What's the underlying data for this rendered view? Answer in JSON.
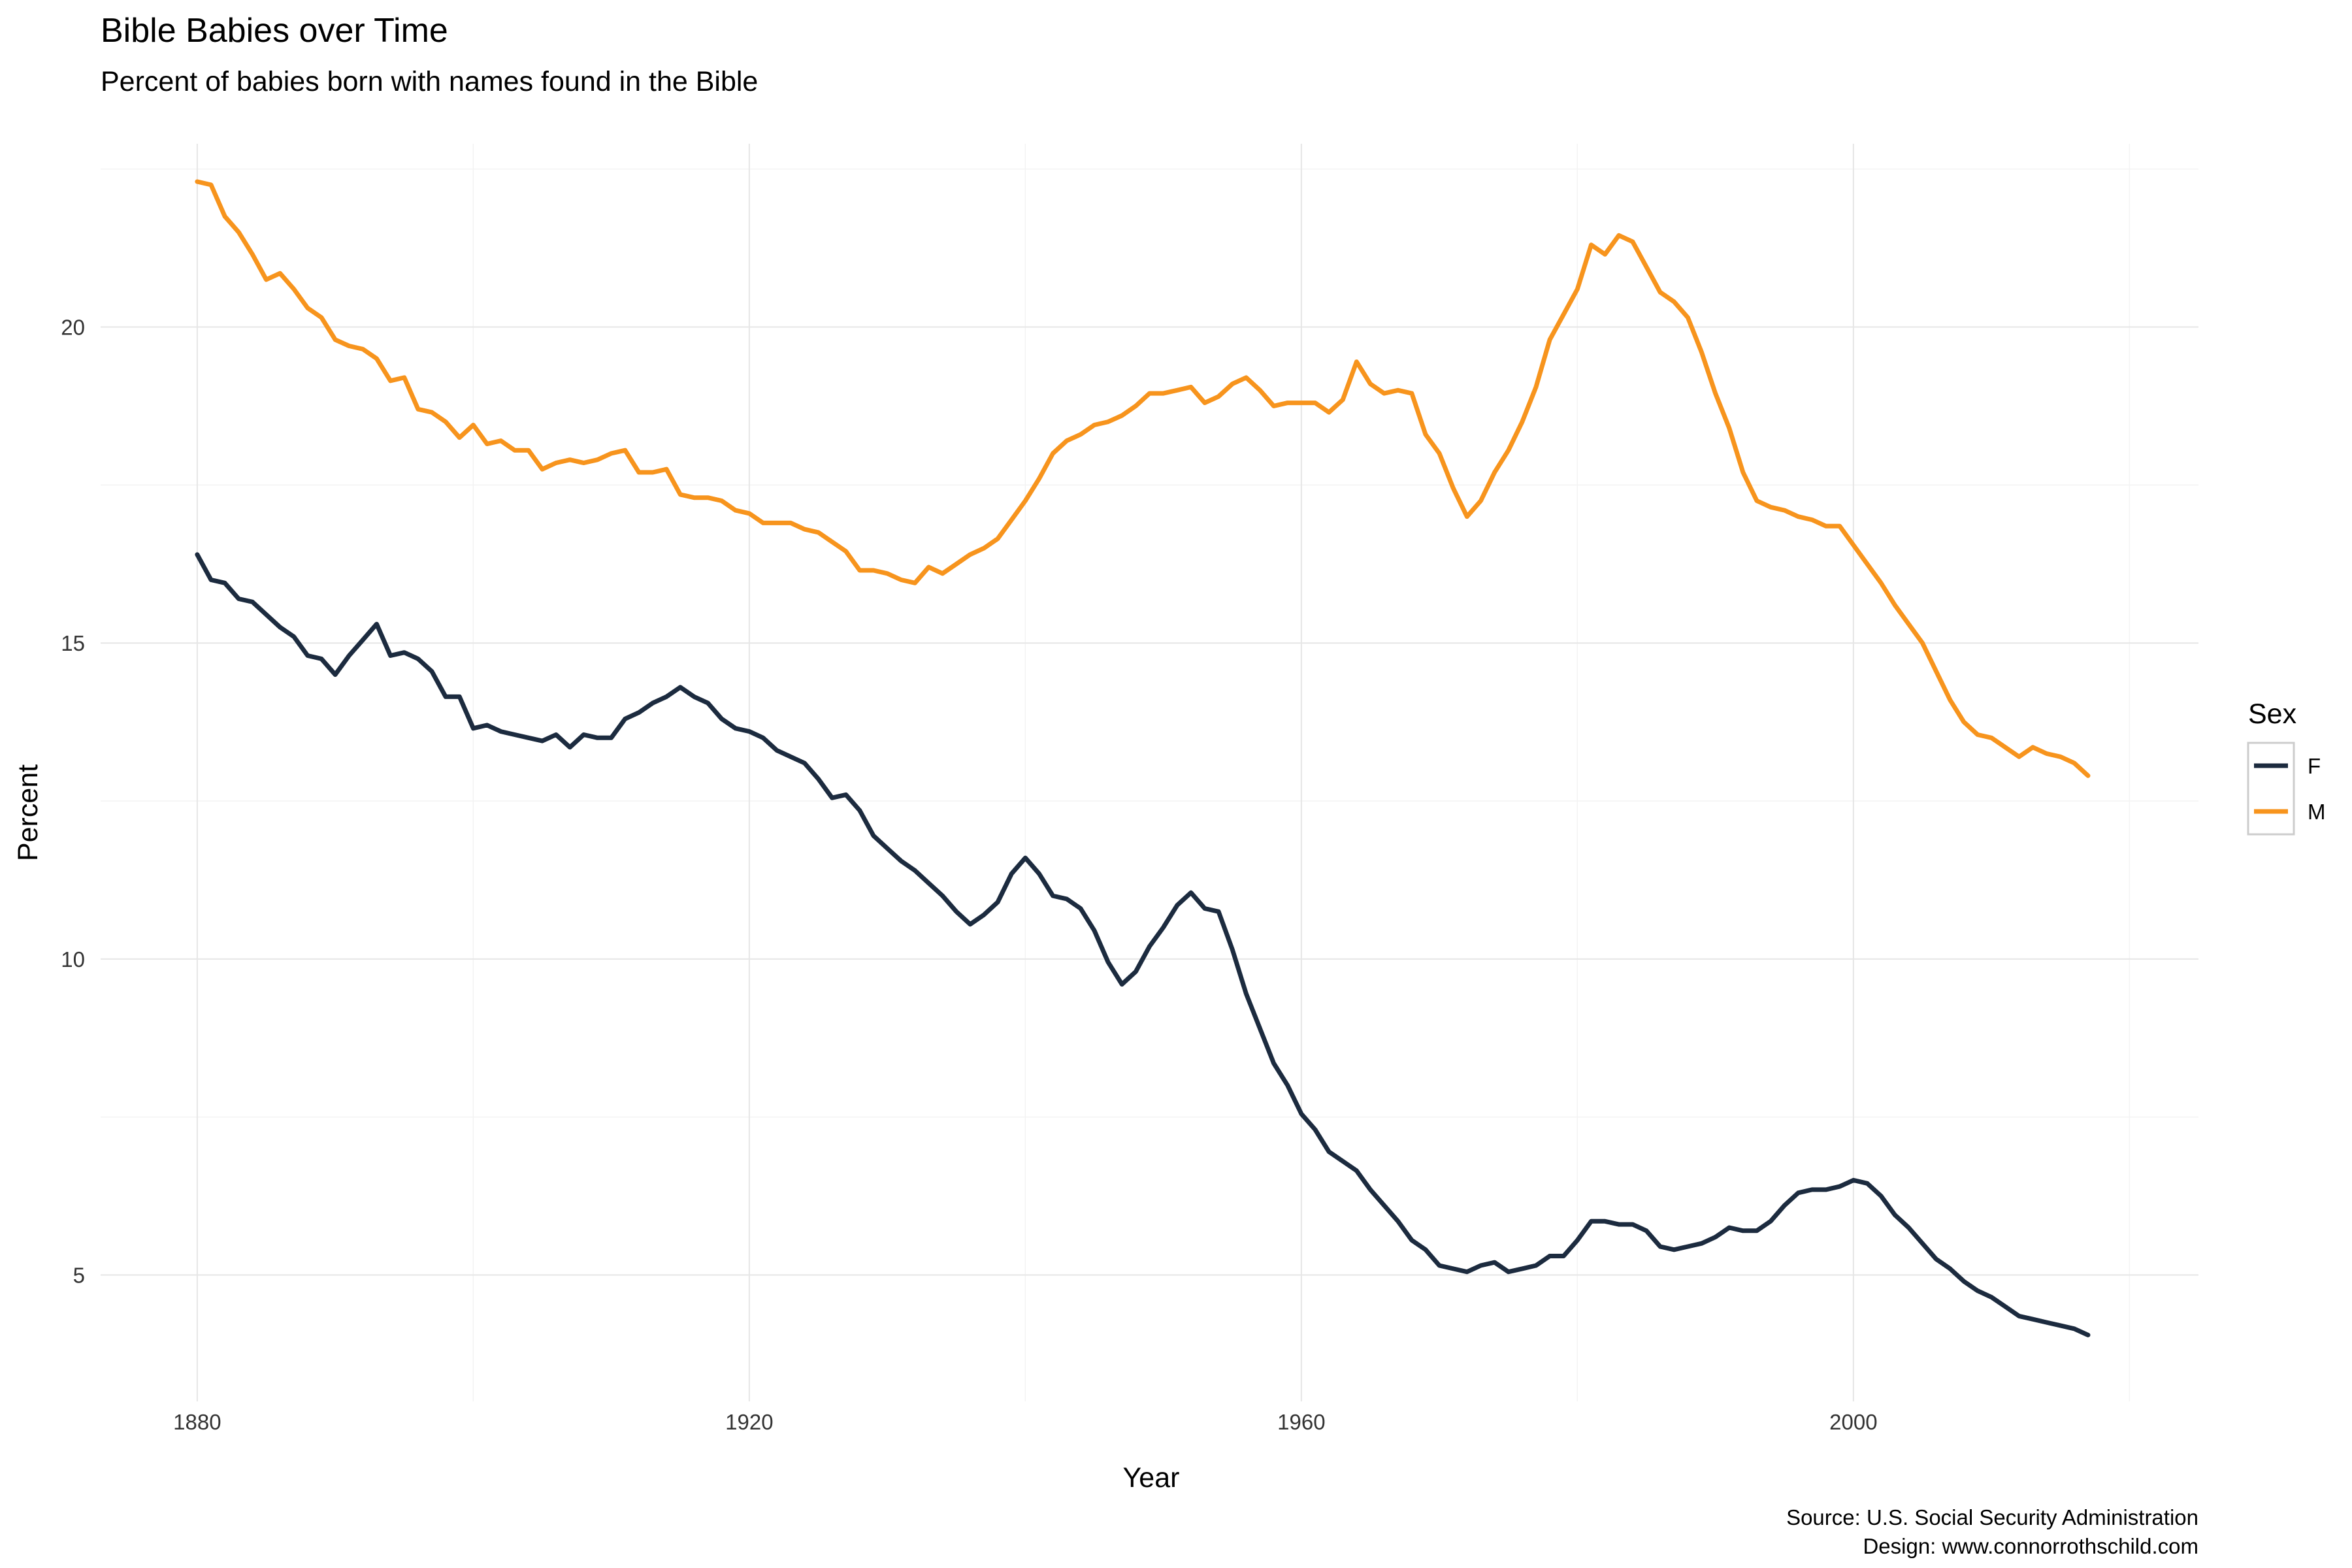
{
  "chart_data": {
    "type": "line",
    "title": "Bible Babies over Time",
    "subtitle": "Percent of babies born with names found in the Bible",
    "xlabel": "Year",
    "ylabel": "Percent",
    "xlim": [
      1873,
      2025
    ],
    "ylim": [
      3.0,
      22.9
    ],
    "x_ticks": [
      1880,
      1920,
      1960,
      2000
    ],
    "y_ticks": [
      5,
      10,
      15,
      20
    ],
    "grid": true,
    "legend": {
      "title": "Sex",
      "placement": "right"
    },
    "caption": [
      "Source: U.S. Social Security Administration",
      "Design: www.connorrothschild.com"
    ],
    "series": [
      {
        "name": "F",
        "color": "#1c2b3f",
        "points": [
          [
            1880,
            16.4
          ],
          [
            1881,
            16.0
          ],
          [
            1882,
            15.95
          ],
          [
            1883,
            15.7
          ],
          [
            1884,
            15.65
          ],
          [
            1885,
            15.45
          ],
          [
            1886,
            15.25
          ],
          [
            1887,
            15.1
          ],
          [
            1888,
            14.8
          ],
          [
            1889,
            14.75
          ],
          [
            1890,
            14.5
          ],
          [
            1891,
            14.8
          ],
          [
            1892,
            15.05
          ],
          [
            1893,
            15.3
          ],
          [
            1894,
            14.8
          ],
          [
            1895,
            14.85
          ],
          [
            1896,
            14.75
          ],
          [
            1897,
            14.55
          ],
          [
            1898,
            14.15
          ],
          [
            1899,
            14.15
          ],
          [
            1900,
            13.65
          ],
          [
            1901,
            13.7
          ],
          [
            1902,
            13.6
          ],
          [
            1903,
            13.55
          ],
          [
            1904,
            13.5
          ],
          [
            1905,
            13.45
          ],
          [
            1906,
            13.55
          ],
          [
            1907,
            13.35
          ],
          [
            1908,
            13.55
          ],
          [
            1909,
            13.5
          ],
          [
            1910,
            13.5
          ],
          [
            1911,
            13.8
          ],
          [
            1912,
            13.9
          ],
          [
            1913,
            14.05
          ],
          [
            1914,
            14.15
          ],
          [
            1915,
            14.3
          ],
          [
            1916,
            14.15
          ],
          [
            1917,
            14.05
          ],
          [
            1918,
            13.8
          ],
          [
            1919,
            13.65
          ],
          [
            1920,
            13.6
          ],
          [
            1921,
            13.5
          ],
          [
            1922,
            13.3
          ],
          [
            1923,
            13.2
          ],
          [
            1924,
            13.1
          ],
          [
            1925,
            12.85
          ],
          [
            1926,
            12.55
          ],
          [
            1927,
            12.6
          ],
          [
            1928,
            12.35
          ],
          [
            1929,
            11.95
          ],
          [
            1930,
            11.75
          ],
          [
            1931,
            11.55
          ],
          [
            1932,
            11.4
          ],
          [
            1933,
            11.2
          ],
          [
            1934,
            11.0
          ],
          [
            1935,
            10.75
          ],
          [
            1936,
            10.55
          ],
          [
            1937,
            10.7
          ],
          [
            1938,
            10.9
          ],
          [
            1939,
            11.35
          ],
          [
            1940,
            11.6
          ],
          [
            1941,
            11.35
          ],
          [
            1942,
            11.0
          ],
          [
            1943,
            10.95
          ],
          [
            1944,
            10.8
          ],
          [
            1945,
            10.45
          ],
          [
            1946,
            9.95
          ],
          [
            1947,
            9.6
          ],
          [
            1948,
            9.8
          ],
          [
            1949,
            10.2
          ],
          [
            1950,
            10.5
          ],
          [
            1951,
            10.85
          ],
          [
            1952,
            11.05
          ],
          [
            1953,
            10.8
          ],
          [
            1954,
            10.75
          ],
          [
            1955,
            10.15
          ],
          [
            1956,
            9.45
          ],
          [
            1957,
            8.9
          ],
          [
            1958,
            8.35
          ],
          [
            1959,
            8.0
          ],
          [
            1960,
            7.55
          ],
          [
            1961,
            7.3
          ],
          [
            1962,
            6.95
          ],
          [
            1963,
            6.8
          ],
          [
            1964,
            6.65
          ],
          [
            1965,
            6.35
          ],
          [
            1966,
            6.1
          ],
          [
            1967,
            5.85
          ],
          [
            1968,
            5.55
          ],
          [
            1969,
            5.4
          ],
          [
            1970,
            5.15
          ],
          [
            1971,
            5.1
          ],
          [
            1972,
            5.05
          ],
          [
            1973,
            5.15
          ],
          [
            1974,
            5.2
          ],
          [
            1975,
            5.05
          ],
          [
            1976,
            5.1
          ],
          [
            1977,
            5.15
          ],
          [
            1978,
            5.3
          ],
          [
            1979,
            5.3
          ],
          [
            1980,
            5.55
          ],
          [
            1981,
            5.85
          ],
          [
            1982,
            5.85
          ],
          [
            1983,
            5.8
          ],
          [
            1984,
            5.8
          ],
          [
            1985,
            5.7
          ],
          [
            1986,
            5.45
          ],
          [
            1987,
            5.4
          ],
          [
            1988,
            5.45
          ],
          [
            1989,
            5.5
          ],
          [
            1990,
            5.6
          ],
          [
            1991,
            5.75
          ],
          [
            1992,
            5.7
          ],
          [
            1993,
            5.7
          ],
          [
            1994,
            5.85
          ],
          [
            1995,
            6.1
          ],
          [
            1996,
            6.3
          ],
          [
            1997,
            6.35
          ],
          [
            1998,
            6.35
          ],
          [
            1999,
            6.4
          ],
          [
            2000,
            6.5
          ],
          [
            2001,
            6.45
          ],
          [
            2002,
            6.25
          ],
          [
            2003,
            5.95
          ],
          [
            2004,
            5.75
          ],
          [
            2005,
            5.5
          ],
          [
            2006,
            5.25
          ],
          [
            2007,
            5.1
          ],
          [
            2008,
            4.9
          ],
          [
            2009,
            4.75
          ],
          [
            2010,
            4.65
          ],
          [
            2011,
            4.5
          ],
          [
            2012,
            4.35
          ],
          [
            2013,
            4.3
          ],
          [
            2014,
            4.25
          ],
          [
            2015,
            4.2
          ],
          [
            2016,
            4.15
          ],
          [
            2017,
            4.05
          ]
        ]
      },
      {
        "name": "M",
        "color": "#f7941d",
        "points": [
          [
            1880,
            22.3
          ],
          [
            1881,
            22.25
          ],
          [
            1882,
            21.75
          ],
          [
            1883,
            21.5
          ],
          [
            1884,
            21.15
          ],
          [
            1885,
            20.75
          ],
          [
            1886,
            20.85
          ],
          [
            1887,
            20.6
          ],
          [
            1888,
            20.3
          ],
          [
            1889,
            20.15
          ],
          [
            1890,
            19.8
          ],
          [
            1891,
            19.7
          ],
          [
            1892,
            19.65
          ],
          [
            1893,
            19.5
          ],
          [
            1894,
            19.15
          ],
          [
            1895,
            19.2
          ],
          [
            1896,
            18.7
          ],
          [
            1897,
            18.65
          ],
          [
            1898,
            18.5
          ],
          [
            1899,
            18.25
          ],
          [
            1900,
            18.45
          ],
          [
            1901,
            18.15
          ],
          [
            1902,
            18.2
          ],
          [
            1903,
            18.05
          ],
          [
            1904,
            18.05
          ],
          [
            1905,
            17.75
          ],
          [
            1906,
            17.85
          ],
          [
            1907,
            17.9
          ],
          [
            1908,
            17.85
          ],
          [
            1909,
            17.9
          ],
          [
            1910,
            18.0
          ],
          [
            1911,
            18.05
          ],
          [
            1912,
            17.7
          ],
          [
            1913,
            17.7
          ],
          [
            1914,
            17.75
          ],
          [
            1915,
            17.35
          ],
          [
            1916,
            17.3
          ],
          [
            1917,
            17.3
          ],
          [
            1918,
            17.25
          ],
          [
            1919,
            17.1
          ],
          [
            1920,
            17.05
          ],
          [
            1921,
            16.9
          ],
          [
            1922,
            16.9
          ],
          [
            1923,
            16.9
          ],
          [
            1924,
            16.8
          ],
          [
            1925,
            16.75
          ],
          [
            1926,
            16.6
          ],
          [
            1927,
            16.45
          ],
          [
            1928,
            16.15
          ],
          [
            1929,
            16.15
          ],
          [
            1930,
            16.1
          ],
          [
            1931,
            16.0
          ],
          [
            1932,
            15.95
          ],
          [
            1933,
            16.2
          ],
          [
            1934,
            16.1
          ],
          [
            1935,
            16.25
          ],
          [
            1936,
            16.4
          ],
          [
            1937,
            16.5
          ],
          [
            1938,
            16.65
          ],
          [
            1939,
            16.95
          ],
          [
            1940,
            17.25
          ],
          [
            1941,
            17.6
          ],
          [
            1942,
            18.0
          ],
          [
            1943,
            18.2
          ],
          [
            1944,
            18.3
          ],
          [
            1945,
            18.45
          ],
          [
            1946,
            18.5
          ],
          [
            1947,
            18.6
          ],
          [
            1948,
            18.75
          ],
          [
            1949,
            18.95
          ],
          [
            1950,
            18.95
          ],
          [
            1951,
            19.0
          ],
          [
            1952,
            19.05
          ],
          [
            1953,
            18.8
          ],
          [
            1954,
            18.9
          ],
          [
            1955,
            19.1
          ],
          [
            1956,
            19.2
          ],
          [
            1957,
            19.0
          ],
          [
            1958,
            18.75
          ],
          [
            1959,
            18.8
          ],
          [
            1960,
            18.8
          ],
          [
            1961,
            18.8
          ],
          [
            1962,
            18.65
          ],
          [
            1963,
            18.85
          ],
          [
            1964,
            19.45
          ],
          [
            1965,
            19.1
          ],
          [
            1966,
            18.95
          ],
          [
            1967,
            19.0
          ],
          [
            1968,
            18.95
          ],
          [
            1969,
            18.3
          ],
          [
            1970,
            18.0
          ],
          [
            1971,
            17.45
          ],
          [
            1972,
            17.0
          ],
          [
            1973,
            17.25
          ],
          [
            1974,
            17.7
          ],
          [
            1975,
            18.05
          ],
          [
            1976,
            18.5
          ],
          [
            1977,
            19.05
          ],
          [
            1978,
            19.8
          ],
          [
            1979,
            20.2
          ],
          [
            1980,
            20.6
          ],
          [
            1981,
            21.3
          ],
          [
            1982,
            21.15
          ],
          [
            1983,
            21.45
          ],
          [
            1984,
            21.35
          ],
          [
            1985,
            20.95
          ],
          [
            1986,
            20.55
          ],
          [
            1987,
            20.4
          ],
          [
            1988,
            20.15
          ],
          [
            1989,
            19.6
          ],
          [
            1990,
            18.95
          ],
          [
            1991,
            18.4
          ],
          [
            1992,
            17.7
          ],
          [
            1993,
            17.25
          ],
          [
            1994,
            17.15
          ],
          [
            1995,
            17.1
          ],
          [
            1996,
            17.0
          ],
          [
            1997,
            16.95
          ],
          [
            1998,
            16.85
          ],
          [
            1999,
            16.85
          ],
          [
            2000,
            16.55
          ],
          [
            2001,
            16.25
          ],
          [
            2002,
            15.95
          ],
          [
            2003,
            15.6
          ],
          [
            2004,
            15.3
          ],
          [
            2005,
            15.0
          ],
          [
            2006,
            14.55
          ],
          [
            2007,
            14.1
          ],
          [
            2008,
            13.75
          ],
          [
            2009,
            13.55
          ],
          [
            2010,
            13.5
          ],
          [
            2011,
            13.35
          ],
          [
            2012,
            13.2
          ],
          [
            2013,
            13.35
          ],
          [
            2014,
            13.25
          ],
          [
            2015,
            13.2
          ],
          [
            2016,
            13.1
          ],
          [
            2017,
            12.9
          ]
        ]
      }
    ]
  }
}
